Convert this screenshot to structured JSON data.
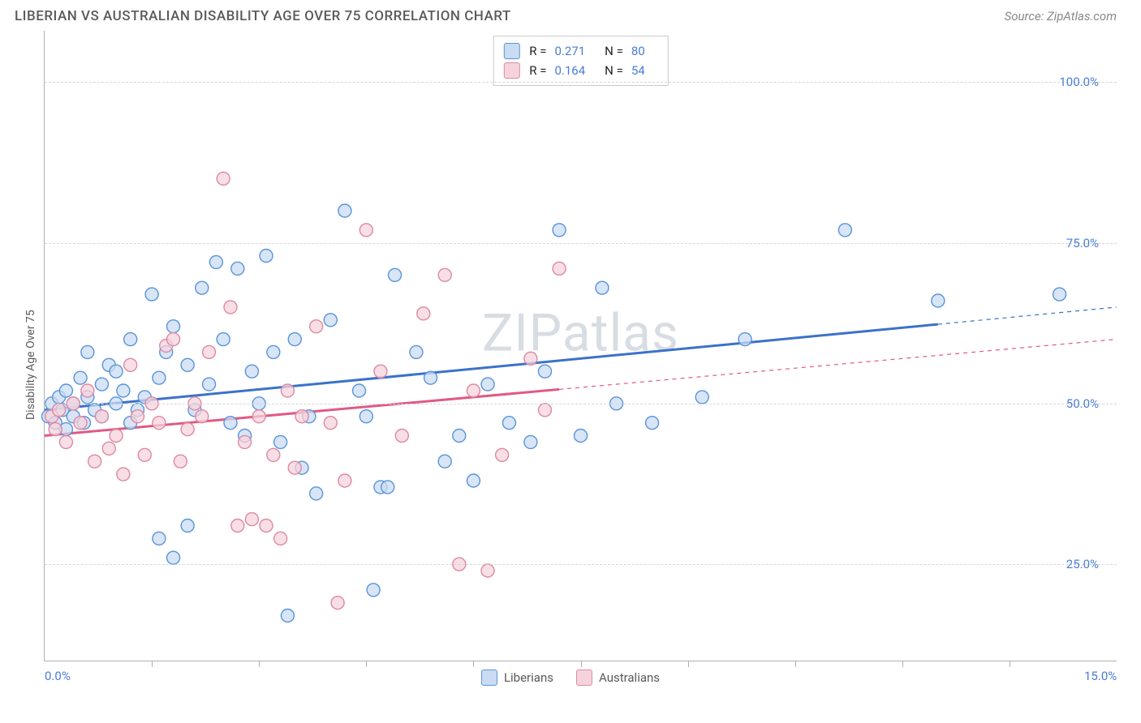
{
  "title": "LIBERIAN VS AUSTRALIAN DISABILITY AGE OVER 75 CORRELATION CHART",
  "source": "Source: ZipAtlas.com",
  "watermark": "ZIPatlas",
  "ylabel": "Disability Age Over 75",
  "chart": {
    "type": "scatter",
    "xlim": [
      0,
      15
    ],
    "ylim": [
      10,
      108
    ],
    "xaxis_labels": [
      {
        "x": 0,
        "text": "0.0%"
      },
      {
        "x": 15,
        "text": "15.0%"
      }
    ],
    "xticks": [
      1.5,
      3.0,
      4.5,
      6.0,
      7.5,
      9.0,
      10.5,
      12.0,
      13.5
    ],
    "yticks": [
      {
        "y": 25,
        "label": "25.0%"
      },
      {
        "y": 50,
        "label": "50.0%"
      },
      {
        "y": 75,
        "label": "75.0%"
      },
      {
        "y": 100,
        "label": "100.0%"
      }
    ],
    "grid_color": "#d6d6d6",
    "background_color": "#ffffff",
    "axis_color": "#b0b0b0",
    "marker_radius": 8,
    "marker_stroke_width": 1.4,
    "line_width": 3,
    "series": [
      {
        "name": "Liberians",
        "fill": "#c9dcf3",
        "stroke": "#5a94d8",
        "line_color": "#3a72c9",
        "r": 0.271,
        "n": 80,
        "regression": {
          "x1": 0,
          "y1": 49,
          "x2": 15,
          "y2": 65,
          "solid_until": 12.5
        },
        "points": [
          [
            0.05,
            48
          ],
          [
            0.1,
            50
          ],
          [
            0.15,
            47
          ],
          [
            0.2,
            51
          ],
          [
            0.25,
            49
          ],
          [
            0.3,
            46
          ],
          [
            0.3,
            52
          ],
          [
            0.4,
            50
          ],
          [
            0.4,
            48
          ],
          [
            0.5,
            54
          ],
          [
            0.55,
            47
          ],
          [
            0.6,
            58
          ],
          [
            0.6,
            51
          ],
          [
            0.7,
            49
          ],
          [
            0.8,
            53
          ],
          [
            0.8,
            48
          ],
          [
            0.9,
            56
          ],
          [
            1.0,
            50
          ],
          [
            1.0,
            55
          ],
          [
            1.1,
            52
          ],
          [
            1.2,
            47
          ],
          [
            1.2,
            60
          ],
          [
            1.3,
            49
          ],
          [
            1.4,
            51
          ],
          [
            1.5,
            67
          ],
          [
            1.6,
            54
          ],
          [
            1.6,
            29
          ],
          [
            1.7,
            58
          ],
          [
            1.8,
            62
          ],
          [
            1.8,
            26
          ],
          [
            2.0,
            56
          ],
          [
            2.0,
            31
          ],
          [
            2.1,
            49
          ],
          [
            2.2,
            68
          ],
          [
            2.3,
            53
          ],
          [
            2.4,
            72
          ],
          [
            2.5,
            60
          ],
          [
            2.6,
            47
          ],
          [
            2.7,
            71
          ],
          [
            2.8,
            45
          ],
          [
            2.9,
            55
          ],
          [
            3.0,
            50
          ],
          [
            3.1,
            73
          ],
          [
            3.2,
            58
          ],
          [
            3.3,
            44
          ],
          [
            3.4,
            17
          ],
          [
            3.5,
            60
          ],
          [
            3.6,
            40
          ],
          [
            3.7,
            48
          ],
          [
            3.8,
            36
          ],
          [
            4.0,
            63
          ],
          [
            4.2,
            80
          ],
          [
            4.4,
            52
          ],
          [
            4.5,
            48
          ],
          [
            4.6,
            21
          ],
          [
            4.7,
            37
          ],
          [
            4.8,
            37
          ],
          [
            4.9,
            70
          ],
          [
            5.2,
            58
          ],
          [
            5.4,
            54
          ],
          [
            5.6,
            41
          ],
          [
            5.8,
            45
          ],
          [
            6.0,
            38
          ],
          [
            6.2,
            53
          ],
          [
            6.5,
            47
          ],
          [
            6.8,
            44
          ],
          [
            7.0,
            55
          ],
          [
            7.2,
            77
          ],
          [
            7.5,
            45
          ],
          [
            7.8,
            68
          ],
          [
            8.0,
            50
          ],
          [
            8.5,
            47
          ],
          [
            9.2,
            51
          ],
          [
            9.8,
            60
          ],
          [
            11.2,
            77
          ],
          [
            12.5,
            66
          ],
          [
            14.2,
            67
          ]
        ]
      },
      {
        "name": "Australians",
        "fill": "#f6d3dc",
        "stroke": "#dd89a4",
        "line_color": "#e05a84",
        "r": 0.164,
        "n": 54,
        "regression": {
          "x1": 0,
          "y1": 45,
          "x2": 15,
          "y2": 60,
          "solid_until": 7.2
        },
        "points": [
          [
            0.1,
            48
          ],
          [
            0.15,
            46
          ],
          [
            0.2,
            49
          ],
          [
            0.3,
            44
          ],
          [
            0.4,
            50
          ],
          [
            0.5,
            47
          ],
          [
            0.6,
            52
          ],
          [
            0.7,
            41
          ],
          [
            0.8,
            48
          ],
          [
            0.9,
            43
          ],
          [
            1.0,
            45
          ],
          [
            1.1,
            39
          ],
          [
            1.2,
            56
          ],
          [
            1.3,
            48
          ],
          [
            1.4,
            42
          ],
          [
            1.5,
            50
          ],
          [
            1.6,
            47
          ],
          [
            1.7,
            59
          ],
          [
            1.8,
            60
          ],
          [
            1.9,
            41
          ],
          [
            2.0,
            46
          ],
          [
            2.1,
            50
          ],
          [
            2.2,
            48
          ],
          [
            2.3,
            58
          ],
          [
            2.5,
            85
          ],
          [
            2.6,
            65
          ],
          [
            2.7,
            31
          ],
          [
            2.8,
            44
          ],
          [
            2.9,
            32
          ],
          [
            3.0,
            48
          ],
          [
            3.1,
            31
          ],
          [
            3.2,
            42
          ],
          [
            3.3,
            29
          ],
          [
            3.4,
            52
          ],
          [
            3.5,
            40
          ],
          [
            3.6,
            48
          ],
          [
            3.8,
            62
          ],
          [
            4.0,
            47
          ],
          [
            4.1,
            19
          ],
          [
            4.2,
            38
          ],
          [
            4.5,
            77
          ],
          [
            4.7,
            55
          ],
          [
            5.0,
            45
          ],
          [
            5.3,
            64
          ],
          [
            5.6,
            70
          ],
          [
            5.8,
            25
          ],
          [
            6.0,
            52
          ],
          [
            6.2,
            24
          ],
          [
            6.4,
            42
          ],
          [
            6.8,
            57
          ],
          [
            7.0,
            49
          ],
          [
            7.2,
            71
          ]
        ]
      }
    ]
  },
  "legend_top_label_r": "R =",
  "legend_top_label_n": "N ="
}
